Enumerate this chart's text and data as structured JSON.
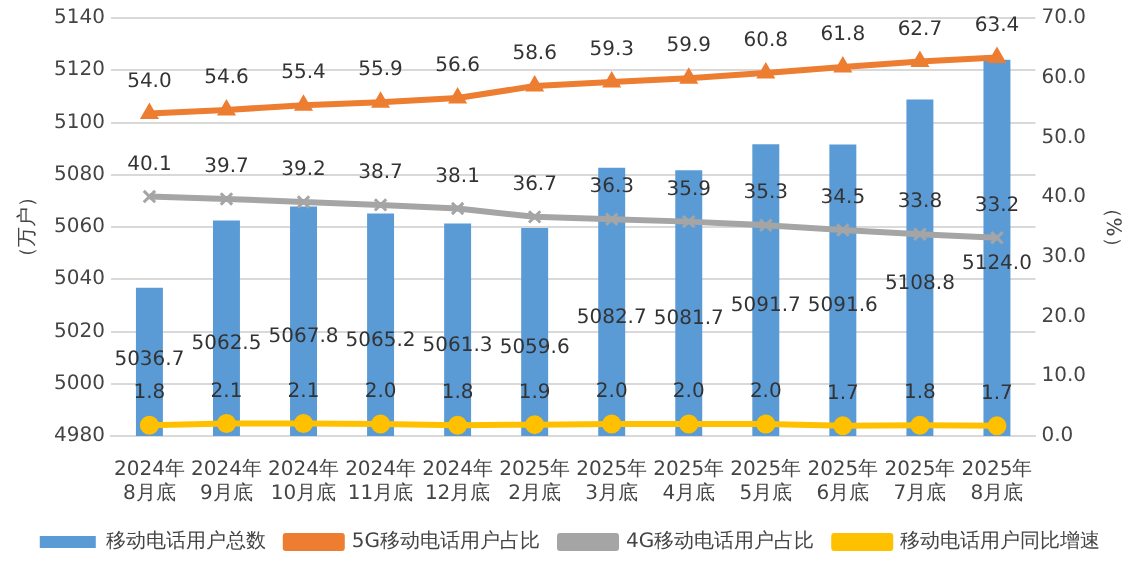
{
  "chart_data": {
    "type": "bar",
    "categories": [
      "2024年\n8月底",
      "2024年\n9月底",
      "2024年\n10月底",
      "2024年\n11月底",
      "2024年\n12月底",
      "2025年\n2月底",
      "2025年\n3月底",
      "2025年\n4月底",
      "2025年\n5月底",
      "2025年\n6月底",
      "2025年\n7月底",
      "2025年\n8月底"
    ],
    "series": [
      {
        "name": "移动电话用户总数",
        "color": "#5b9bd5",
        "values": [
          5036.7,
          5062.5,
          5067.8,
          5065.2,
          5061.3,
          5059.6,
          5082.7,
          5081.7,
          5091.7,
          5091.6,
          5108.8,
          5124.0
        ],
        "value_labels": [
          "5036.7",
          "5062.5",
          "5067.8",
          "5065.2",
          "5061.3",
          "5059.6",
          "5082.7",
          "5081.7",
          "5091.7",
          "5091.6",
          "5108.8",
          "5124.0"
        ]
      },
      {
        "name": "5G移动电话用户占比",
        "type": "line",
        "axis": "y2",
        "marker": "triangle",
        "color": "#ed7d31",
        "values": [
          54.0,
          54.6,
          55.4,
          55.9,
          56.6,
          58.6,
          59.3,
          59.9,
          60.8,
          61.8,
          62.7,
          63.4
        ],
        "value_labels": [
          "54.0",
          "54.6",
          "55.4",
          "55.9",
          "56.6",
          "58.6",
          "59.3",
          "59.9",
          "60.8",
          "61.8",
          "62.7",
          "63.4"
        ]
      },
      {
        "name": "4G移动电话用户占比",
        "type": "line",
        "axis": "y2",
        "marker": "cross",
        "color": "#a5a5a5",
        "values": [
          40.1,
          39.7,
          39.2,
          38.7,
          38.1,
          36.7,
          36.3,
          35.9,
          35.3,
          34.5,
          33.8,
          33.2
        ],
        "value_labels": [
          "40.1",
          "39.7",
          "39.2",
          "38.7",
          "38.1",
          "36.7",
          "36.3",
          "35.9",
          "35.3",
          "34.5",
          "33.8",
          "33.2"
        ]
      },
      {
        "name": "移动电话用户同比增速",
        "type": "line",
        "axis": "y2",
        "marker": "circle",
        "color": "#ffc000",
        "values": [
          1.8,
          2.1,
          2.1,
          2.0,
          1.8,
          1.9,
          2.0,
          2.0,
          2.0,
          1.7,
          1.8,
          1.7
        ],
        "value_labels": [
          "1.8",
          "2.1",
          "2.1",
          "2.0",
          "1.8",
          "1.9",
          "2.0",
          "2.0",
          "2.0",
          "1.7",
          "1.8",
          "1.7"
        ]
      }
    ],
    "ylabel": "（万户）",
    "y2label": "（%）",
    "ylim": [
      4980,
      5140
    ],
    "yticks": [
      4980,
      5000,
      5020,
      5040,
      5060,
      5080,
      5100,
      5120,
      5140
    ],
    "y2lim": [
      0,
      70
    ],
    "y2ticks": [
      {
        "value": 0,
        "label": "0.0"
      },
      {
        "value": 10,
        "label": "10.0"
      },
      {
        "value": 20,
        "label": "20.0"
      },
      {
        "value": 30,
        "label": "30.0"
      },
      {
        "value": 40,
        "label": "40.0"
      },
      {
        "value": 50,
        "label": "50.0"
      },
      {
        "value": 60,
        "label": "60.0"
      },
      {
        "value": 70,
        "label": "70.0"
      }
    ],
    "grid": "y",
    "legend": "bottom"
  }
}
